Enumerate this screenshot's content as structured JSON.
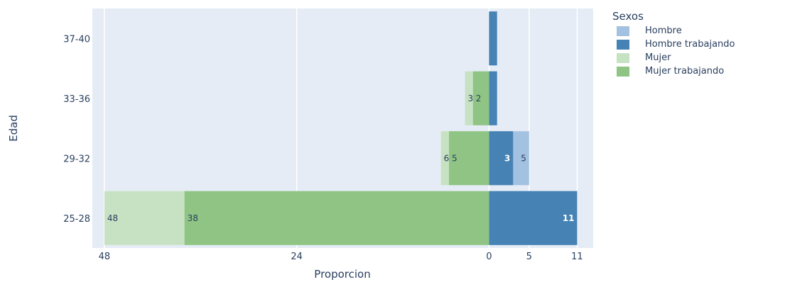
{
  "chart_data": {
    "type": "bar",
    "orientation": "horizontal",
    "barmode": "overlay",
    "xlabel": "Proporcion",
    "ylabel": "Edad",
    "categories": [
      "25-28",
      "29-32",
      "33-36",
      "37-40"
    ],
    "xrange": [
      -49.5,
      13
    ],
    "xticks": [
      {
        "value": -48,
        "label": "48"
      },
      {
        "value": -24,
        "label": "24"
      },
      {
        "value": 0,
        "label": "0"
      },
      {
        "value": 5,
        "label": "5"
      },
      {
        "value": 11,
        "label": "11"
      }
    ],
    "grid": true,
    "legend_position": "top-right",
    "legend_title": "Sexos",
    "series": [
      {
        "name": "Hombre",
        "color": "#a3c1e0",
        "values": [
          11,
          5,
          1,
          1
        ],
        "labels": [
          "",
          "5",
          "",
          ""
        ]
      },
      {
        "name": "Hombre trabajando",
        "color": "#4682b4",
        "values": [
          11,
          3,
          1,
          1
        ],
        "labels": [
          "11",
          "3",
          "",
          ""
        ]
      },
      {
        "name": "Mujer",
        "color": "#c7e2c2",
        "values": [
          -48,
          -6,
          -3,
          0
        ],
        "labels": [
          "48",
          "6",
          "3",
          ""
        ]
      },
      {
        "name": "Mujer trabajando",
        "color": "#8fc484",
        "values": [
          -38,
          -5,
          -2,
          0
        ],
        "labels": [
          "38",
          "5",
          "2",
          ""
        ]
      }
    ]
  }
}
